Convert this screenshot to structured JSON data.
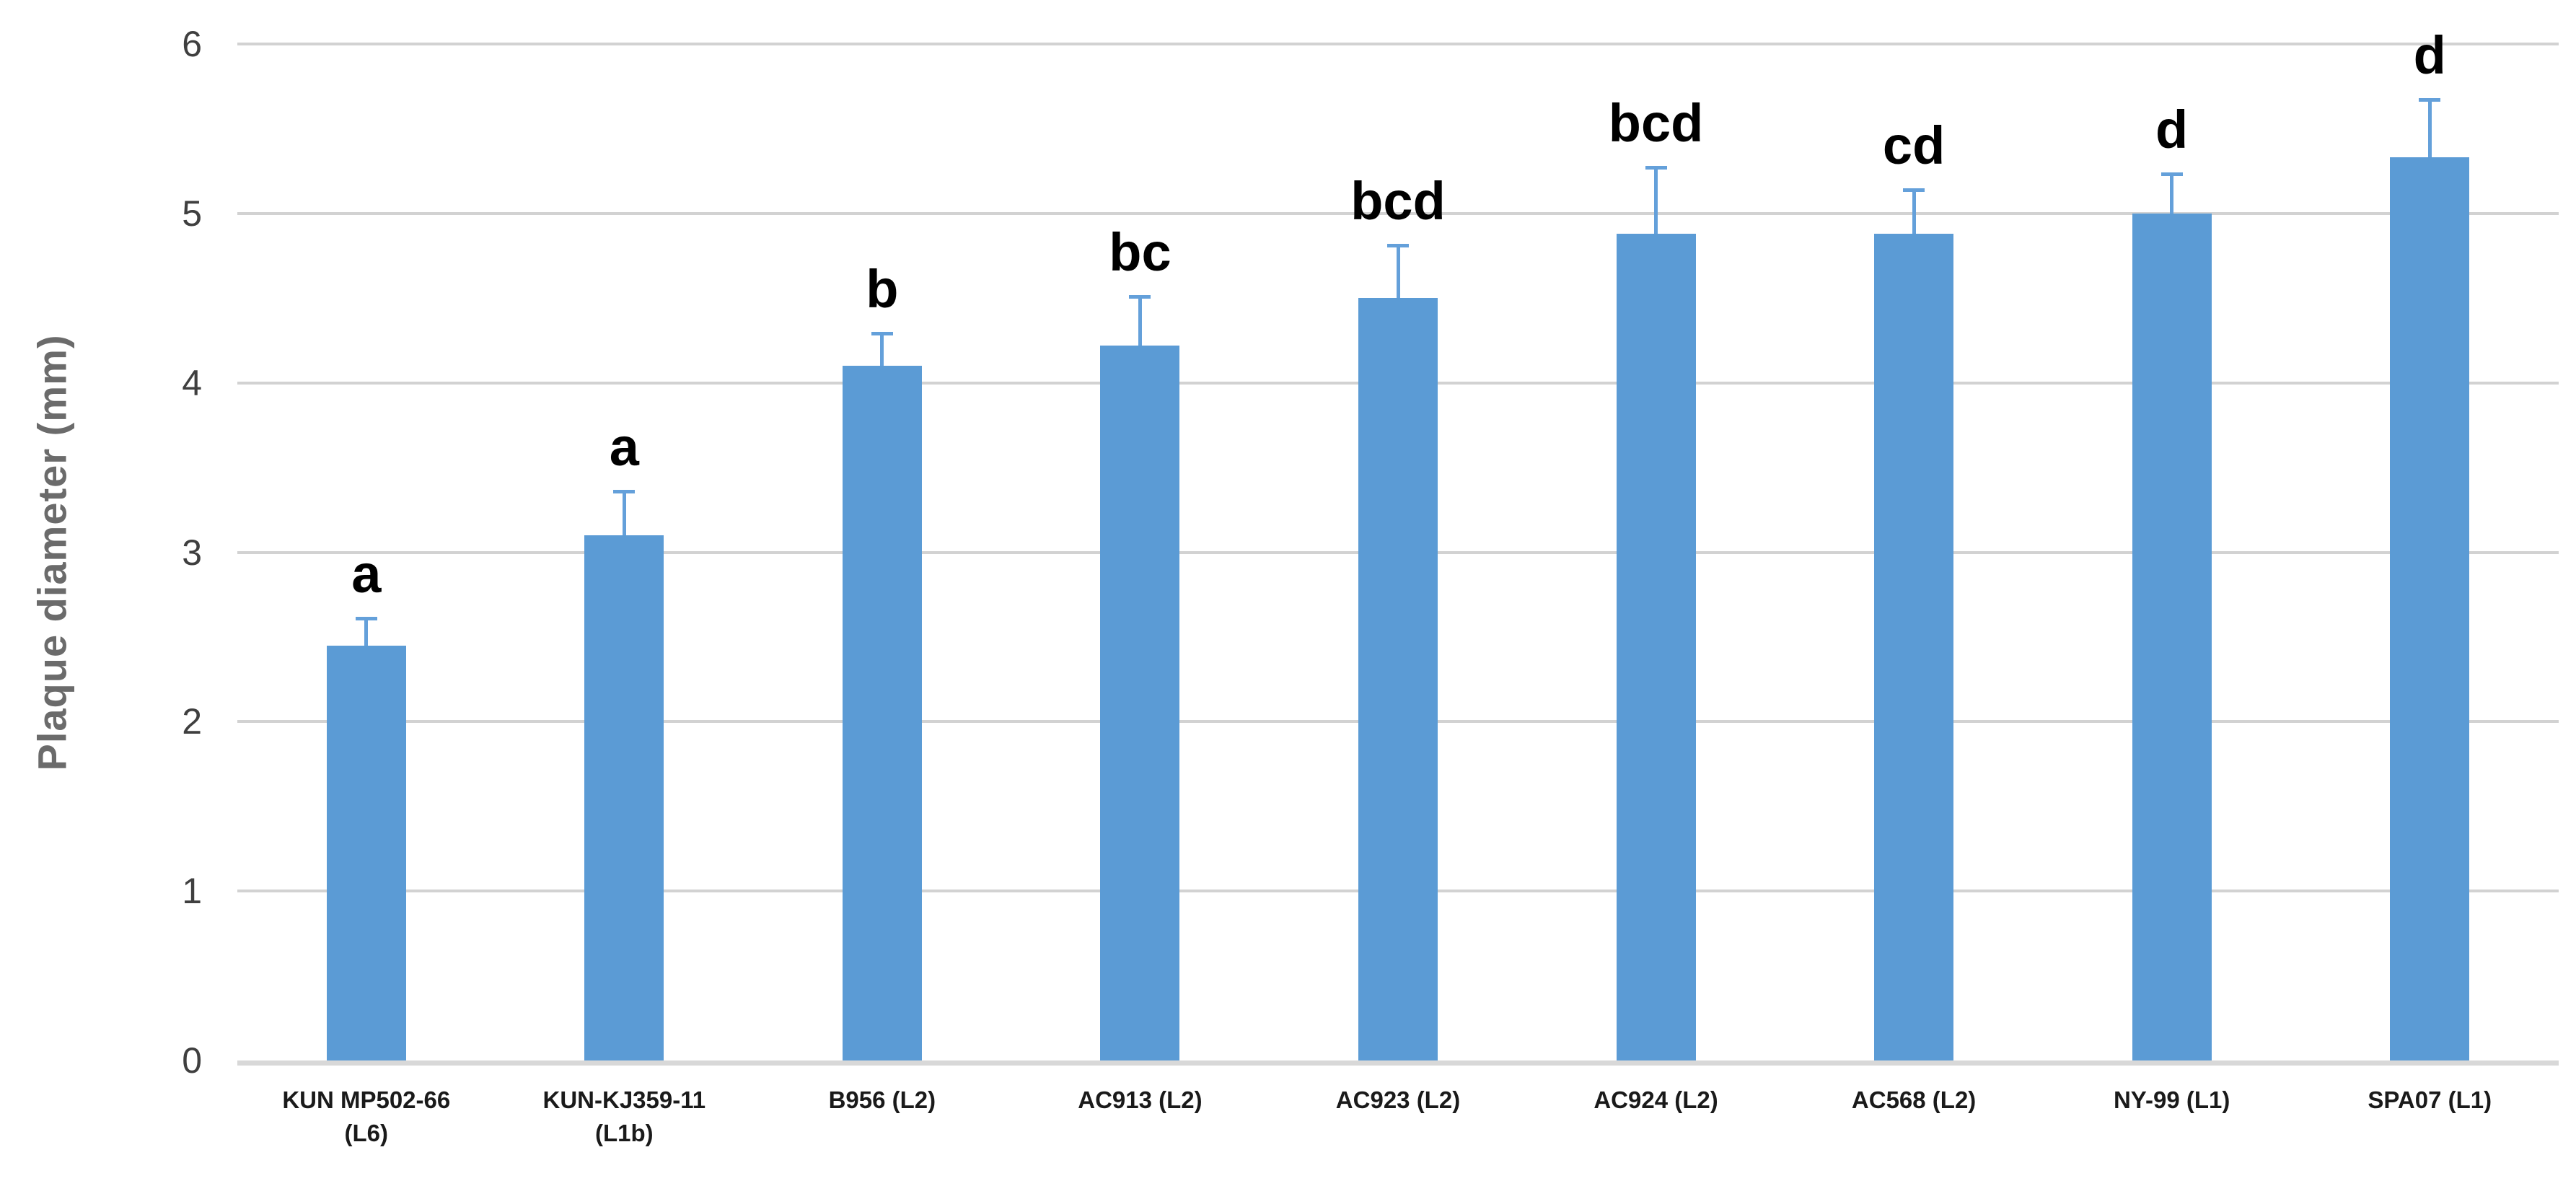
{
  "chart_data": {
    "type": "bar",
    "title": "",
    "xlabel": "",
    "ylabel": "Plaque diameter (mm)",
    "ylim": [
      0,
      6
    ],
    "yticks": [
      0,
      1,
      2,
      3,
      4,
      5,
      6
    ],
    "grid": "horizontal",
    "legend": "none",
    "categories": [
      "KUN MP502-66\n(L6)",
      "KUN-KJ359-11\n(L1b)",
      "B956 (L2)",
      "AC913 (L2)",
      "AC923 (L2)",
      "AC924 (L2)",
      "AC568 (L2)",
      "NY-99 (L1)",
      "SPA07 (L1)"
    ],
    "series": [
      {
        "name": "Plaque diameter (mm)",
        "values": [
          2.45,
          3.1,
          4.1,
          4.22,
          4.5,
          4.88,
          4.88,
          5.0,
          5.33
        ],
        "errors_plus": [
          0.17,
          0.27,
          0.2,
          0.3,
          0.32,
          0.4,
          0.27,
          0.24,
          0.35
        ]
      }
    ],
    "significance_letters": [
      "a",
      "a",
      "b",
      "bc",
      "bcd",
      "bcd",
      "cd",
      "d",
      "d"
    ],
    "colors": {
      "bar": "#5B9BD5",
      "error_bar": "#64A0DA",
      "gridline": "#D2D2D2",
      "axis_line": "#D8D8D8",
      "ytick_label": "#3F3F3F",
      "xtick_label": "#1A1A1A",
      "y_title": "#6B6B6B",
      "letter": "#000000",
      "background": "#FFFFFF"
    }
  }
}
